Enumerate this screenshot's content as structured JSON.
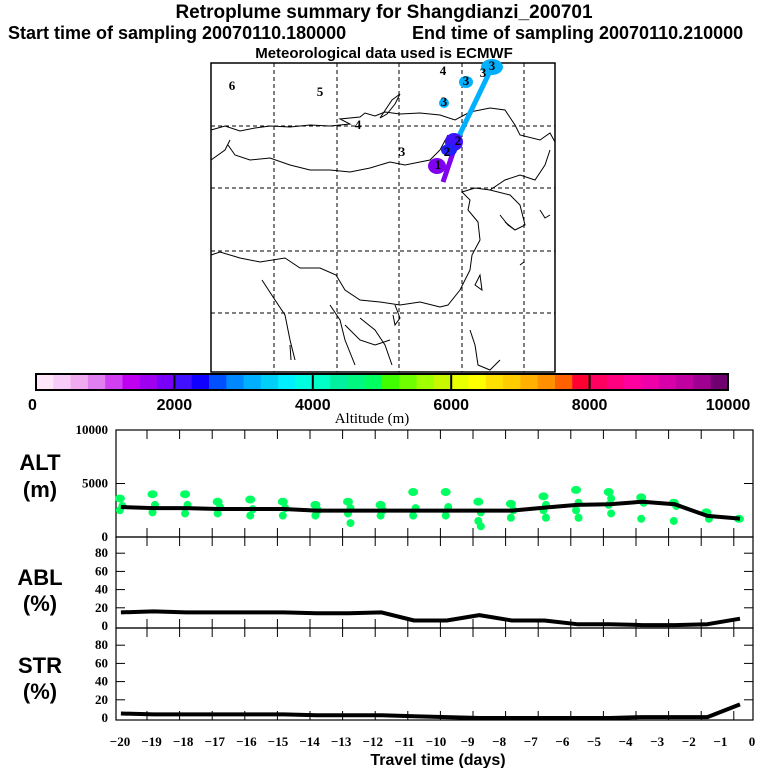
{
  "header": {
    "title": "Retroplume summary for Shangdianzi_200701",
    "start": "Start time of sampling 20070110.180000",
    "end": "End time of sampling 20070110.210000",
    "met": "Meteorological data used is ECMWF"
  },
  "map": {
    "plume_color_high": "#00b0ff",
    "plume_color_low": "#8000f0",
    "markers": [
      {
        "label": "6",
        "color": "#1000ff"
      },
      {
        "label": "5",
        "color": "#1000ff"
      },
      {
        "label": "4",
        "color": "#000000"
      },
      {
        "label": "4",
        "color": "#000000"
      },
      {
        "label": "3",
        "color": "#d040f0"
      },
      {
        "label": "3",
        "color": "#00b0ff"
      },
      {
        "label": "3",
        "color": "#00b0ff"
      },
      {
        "label": "3",
        "color": "#00b0ff"
      },
      {
        "label": "3",
        "color": "#00b0ff"
      },
      {
        "label": "2",
        "color": "#4010ff"
      },
      {
        "label": "2",
        "color": "#4010ff"
      },
      {
        "label": "1",
        "color": "#a000f0"
      }
    ]
  },
  "colorbar": {
    "label": "Altitude (m)",
    "tick_labels": [
      "0",
      "2000",
      "4000",
      "6000",
      "8000",
      "10000"
    ],
    "colors": [
      "#ffe6f8",
      "#f8ccf8",
      "#f0aaf0",
      "#e080f0",
      "#d040f0",
      "#c000f0",
      "#a000f0",
      "#7800f8",
      "#4010ff",
      "#1000ff",
      "#0050ff",
      "#0088ff",
      "#00b0ff",
      "#00d0f8",
      "#00f0ff",
      "#00ffe0",
      "#00ffc8",
      "#00f0a0",
      "#00f880",
      "#00ff60",
      "#40ff00",
      "#70ff00",
      "#a0ff00",
      "#c8f800",
      "#e8ff00",
      "#ffff00",
      "#ffe000",
      "#ffcc00",
      "#ffb000",
      "#ff9000",
      "#ff6000",
      "#ff0030",
      "#ff0060",
      "#ff0080",
      "#ff00a0",
      "#f000a8",
      "#d800a8",
      "#c000a0",
      "#a00090",
      "#700070"
    ]
  },
  "chart_data": [
    {
      "type": "line",
      "name": "ALT",
      "ylabel": "ALT",
      "yunit": "(m)",
      "ylim": [
        0,
        10000
      ],
      "yticks": [
        "0",
        "5000",
        "10000"
      ],
      "x": [
        -20,
        -19,
        -18,
        -17,
        -16,
        -15,
        -14,
        -13,
        -12,
        -11,
        -10,
        -9,
        -8,
        -7,
        -6,
        -5,
        -4,
        -3,
        -2,
        -1
      ],
      "values": [
        2800,
        2700,
        2700,
        2620,
        2620,
        2620,
        2470,
        2470,
        2470,
        2470,
        2470,
        2470,
        2470,
        2750,
        3000,
        3060,
        3300,
        3060,
        1970,
        1720
      ],
      "scatter_color": "#00ff60",
      "scatter": [
        [
          3600,
          2900,
          2500
        ],
        [
          4000,
          3000,
          2300
        ],
        [
          4000,
          3000,
          2200
        ],
        [
          3300,
          2800,
          2200
        ],
        [
          3500,
          2600,
          2000
        ],
        [
          3300,
          2700,
          2000
        ],
        [
          3000,
          2500,
          2000
        ],
        [
          3300,
          2700,
          2200,
          1300
        ],
        [
          3000,
          2500,
          2000
        ],
        [
          4200,
          2700,
          2000
        ],
        [
          4200,
          2800,
          2000
        ],
        [
          3300,
          2300,
          1500,
          1000
        ],
        [
          3100,
          2500,
          1800
        ],
        [
          3800,
          3000,
          2500,
          1800
        ],
        [
          4400,
          3200,
          2500,
          1800
        ],
        [
          4200,
          3600,
          3000,
          2200
        ],
        [
          3700,
          3200,
          1700
        ],
        [
          3200,
          2900,
          1500
        ],
        [
          2300,
          1700
        ],
        [
          1700
        ]
      ]
    },
    {
      "type": "line",
      "name": "ABL",
      "ylabel": "ABL",
      "yunit": "(%)",
      "ylim": [
        0,
        100
      ],
      "yticks": [
        "0",
        "20",
        "40",
        "60",
        "80"
      ],
      "x": [
        -20,
        -19,
        -18,
        -17,
        -16,
        -15,
        -14,
        -13,
        -12,
        -11,
        -10,
        -9,
        -8,
        -7,
        -6,
        -5,
        -4,
        -3,
        -2,
        -1
      ],
      "values": [
        15,
        16,
        15,
        15,
        15,
        15,
        14,
        14,
        15,
        6,
        6,
        12,
        6,
        6,
        2,
        2,
        1,
        1,
        2,
        8
      ]
    },
    {
      "type": "line",
      "name": "STR",
      "ylabel": "STR",
      "yunit": "(%)",
      "ylim": [
        0,
        100
      ],
      "yticks": [
        "0",
        "20",
        "40",
        "60",
        "80"
      ],
      "x": [
        -20,
        -19,
        -18,
        -17,
        -16,
        -15,
        -14,
        -13,
        -12,
        -11,
        -10,
        -9,
        -8,
        -7,
        -6,
        -5,
        -4,
        -3,
        -2,
        -1
      ],
      "values": [
        5,
        4,
        4,
        4,
        4,
        4,
        3,
        3,
        3,
        2,
        1,
        0,
        0,
        0,
        0,
        0,
        1,
        1,
        1,
        15
      ],
      "xlabel": "Travel time (days)",
      "xticks": [
        "−20",
        "−19",
        "−18",
        "−17",
        "−16",
        "−15",
        "−14",
        "−13",
        "−12",
        "−11",
        "−10",
        "−9",
        "−8",
        "−7",
        "−6",
        "−5",
        "−4",
        "−3",
        "−2",
        "−1",
        "0"
      ]
    }
  ]
}
